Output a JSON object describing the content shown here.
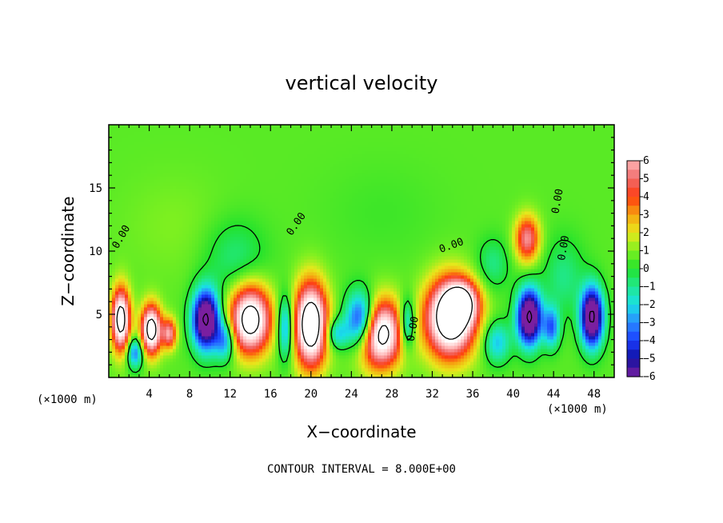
{
  "chart_data": {
    "type": "heatmap",
    "title": "vertical velocity",
    "xlabel": "X−coordinate",
    "ylabel": "Z−coordinate",
    "x_unit_left": "(×1000 m)",
    "x_unit_right": "(×1000 m)",
    "xlim": [
      0,
      50
    ],
    "ylim": [
      0,
      20
    ],
    "x_ticks": [
      4,
      8,
      12,
      16,
      20,
      24,
      28,
      32,
      36,
      40,
      44,
      48
    ],
    "y_ticks": [
      5,
      10,
      15
    ],
    "colorbar": {
      "range": [
        -6,
        6
      ],
      "ticks": [
        "6",
        "5",
        "4",
        "3",
        "2",
        "1",
        "0",
        "−1",
        "−2",
        "−3",
        "−4",
        "−5",
        "−6"
      ]
    },
    "contour_labels": [
      {
        "text": "0.00",
        "x": 1.5,
        "y": 11.0,
        "angle": -60
      },
      {
        "text": "0.00",
        "x": 18.8,
        "y": 12.0,
        "angle": -55
      },
      {
        "text": "0.00",
        "x": 34.0,
        "y": 10.2,
        "angle": -20
      },
      {
        "text": "0.00",
        "x": 44.7,
        "y": 13.9,
        "angle": -80
      },
      {
        "text": "0.00",
        "x": 45.3,
        "y": 10.2,
        "angle": -80
      },
      {
        "text": "0.00",
        "x": 30.4,
        "y": 3.8,
        "angle": -80
      }
    ],
    "footer": "CONTOUR INTERVAL = 8.000E+00",
    "colormap": [
      "#7a1fa0",
      "#1010a0",
      "#1a3cff",
      "#2a8cff",
      "#19e0e6",
      "#20e890",
      "#22e22c",
      "#7ef020",
      "#e8e81c",
      "#f6a410",
      "#ff3c10",
      "#f06a6a",
      "#ffb4b4",
      "#ffffff"
    ]
  }
}
